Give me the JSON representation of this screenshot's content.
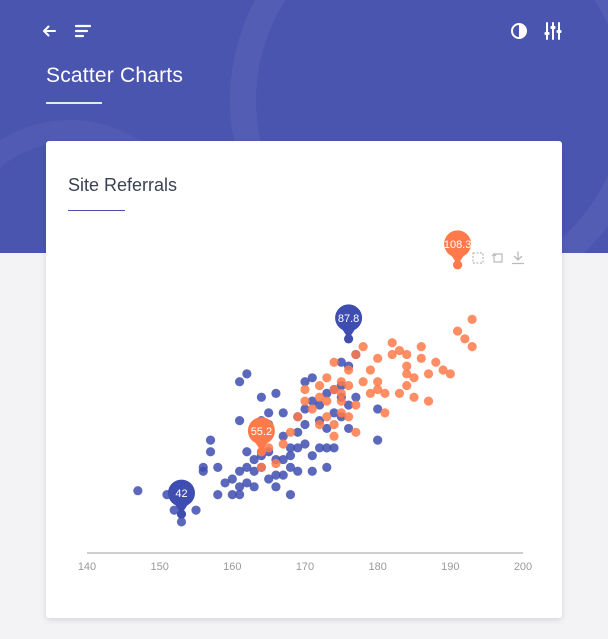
{
  "header": {
    "title": "Scatter Charts",
    "icons": [
      "arrow-left-icon",
      "menu-lines-icon",
      "contrast-icon",
      "sliders-icon"
    ]
  },
  "card": {
    "title": "Site Referrals",
    "toolbar_icons": [
      "select-icon",
      "reset-icon",
      "download-icon"
    ]
  },
  "colors": {
    "primary": "#4a55b0",
    "series_blue": "#3f4db0",
    "series_orange": "#ff7a4a",
    "axis": "#bdbdbd",
    "tick_text": "#9a9a9a"
  },
  "chart_data": {
    "type": "scatter",
    "title": "",
    "xlabel": "",
    "ylabel": "",
    "xlim": [
      140,
      200
    ],
    "xticks": [
      140,
      150,
      160,
      170,
      180,
      190,
      200
    ],
    "ylim": [
      35,
      110
    ],
    "grid": false,
    "legend": "none",
    "series": [
      {
        "color": "#3f4db0",
        "points": [
          [
            147,
            51
          ],
          [
            151,
            50
          ],
          [
            152,
            46
          ],
          [
            153,
            43
          ],
          [
            153,
            48
          ],
          [
            154,
            51
          ],
          [
            155,
            46
          ],
          [
            156,
            56
          ],
          [
            156,
            57
          ],
          [
            157,
            64
          ],
          [
            157,
            61
          ],
          [
            158,
            50
          ],
          [
            158,
            57
          ],
          [
            159,
            53
          ],
          [
            160,
            50
          ],
          [
            160,
            54
          ],
          [
            161,
            52
          ],
          [
            161,
            56
          ],
          [
            161,
            50
          ],
          [
            161,
            69
          ],
          [
            161,
            79
          ],
          [
            162,
            53
          ],
          [
            162,
            57
          ],
          [
            162,
            61
          ],
          [
            162,
            81
          ],
          [
            163,
            59
          ],
          [
            163,
            56
          ],
          [
            163,
            52
          ],
          [
            164,
            57
          ],
          [
            164,
            60
          ],
          [
            164,
            64
          ],
          [
            164,
            75
          ],
          [
            164,
            69
          ],
          [
            165,
            54
          ],
          [
            165,
            61
          ],
          [
            165,
            71
          ],
          [
            165,
            68
          ],
          [
            166,
            59
          ],
          [
            166,
            52
          ],
          [
            166,
            76
          ],
          [
            166,
            55
          ],
          [
            167,
            55
          ],
          [
            167,
            59
          ],
          [
            167,
            65
          ],
          [
            167,
            71
          ],
          [
            168,
            50
          ],
          [
            168,
            57
          ],
          [
            168,
            60
          ],
          [
            168,
            62
          ],
          [
            169,
            56
          ],
          [
            169,
            62
          ],
          [
            169,
            66
          ],
          [
            169,
            70
          ],
          [
            170,
            63
          ],
          [
            170,
            72
          ],
          [
            170,
            68
          ],
          [
            170,
            79
          ],
          [
            171,
            60
          ],
          [
            171,
            56
          ],
          [
            171,
            74
          ],
          [
            171,
            80
          ],
          [
            172,
            62
          ],
          [
            172,
            73
          ],
          [
            172,
            69
          ],
          [
            173,
            57
          ],
          [
            173,
            62
          ],
          [
            173,
            67
          ],
          [
            173,
            76
          ],
          [
            174,
            62
          ],
          [
            174,
            71
          ],
          [
            174,
            77
          ],
          [
            175,
            75
          ],
          [
            175,
            84
          ],
          [
            175,
            70
          ],
          [
            175,
            78
          ],
          [
            176,
            73
          ],
          [
            176,
            67
          ],
          [
            176,
            83
          ],
          [
            177,
            86
          ],
          [
            177,
            75
          ],
          [
            180,
            72
          ],
          [
            180,
            64
          ]
        ]
      },
      {
        "color": "#ff7a4a",
        "points": [
          [
            164,
            57
          ],
          [
            165,
            62
          ],
          [
            166,
            58
          ],
          [
            167,
            63
          ],
          [
            168,
            66
          ],
          [
            169,
            70
          ],
          [
            170,
            74
          ],
          [
            170,
            77
          ],
          [
            171,
            72
          ],
          [
            172,
            75
          ],
          [
            172,
            68
          ],
          [
            172,
            78
          ],
          [
            173,
            74
          ],
          [
            173,
            70
          ],
          [
            173,
            80
          ],
          [
            174,
            68
          ],
          [
            174,
            77
          ],
          [
            174,
            65
          ],
          [
            174,
            84
          ],
          [
            175,
            71
          ],
          [
            175,
            74
          ],
          [
            175,
            76
          ],
          [
            175,
            79
          ],
          [
            176,
            70
          ],
          [
            176,
            78
          ],
          [
            176,
            82
          ],
          [
            177,
            66
          ],
          [
            177,
            73
          ],
          [
            177,
            86
          ],
          [
            178,
            88
          ],
          [
            178,
            79
          ],
          [
            179,
            76
          ],
          [
            179,
            82
          ],
          [
            180,
            77
          ],
          [
            180,
            79
          ],
          [
            180,
            85
          ],
          [
            181,
            71
          ],
          [
            181,
            76
          ],
          [
            182,
            86
          ],
          [
            182,
            89
          ],
          [
            183,
            76
          ],
          [
            183,
            87
          ],
          [
            184,
            78
          ],
          [
            184,
            81
          ],
          [
            184,
            83
          ],
          [
            184,
            86
          ],
          [
            185,
            80
          ],
          [
            185,
            75
          ],
          [
            186,
            85
          ],
          [
            186,
            88
          ],
          [
            187,
            81
          ],
          [
            187,
            74
          ],
          [
            188,
            84
          ],
          [
            189,
            82
          ],
          [
            190,
            81
          ],
          [
            191,
            92
          ],
          [
            192,
            90
          ],
          [
            193,
            95
          ],
          [
            193,
            88
          ]
        ]
      }
    ],
    "annotations": [
      {
        "label": "87.8",
        "x": 176,
        "y": 90,
        "color": "#3f4db0"
      },
      {
        "label": "55.2",
        "x": 164,
        "y": 61,
        "color": "#ff7a4a"
      },
      {
        "label": "42",
        "x": 153,
        "y": 45,
        "color": "#3f4db0"
      },
      {
        "label": "108.3",
        "x": 191,
        "y": 109,
        "color": "#ff7a4a"
      }
    ]
  }
}
